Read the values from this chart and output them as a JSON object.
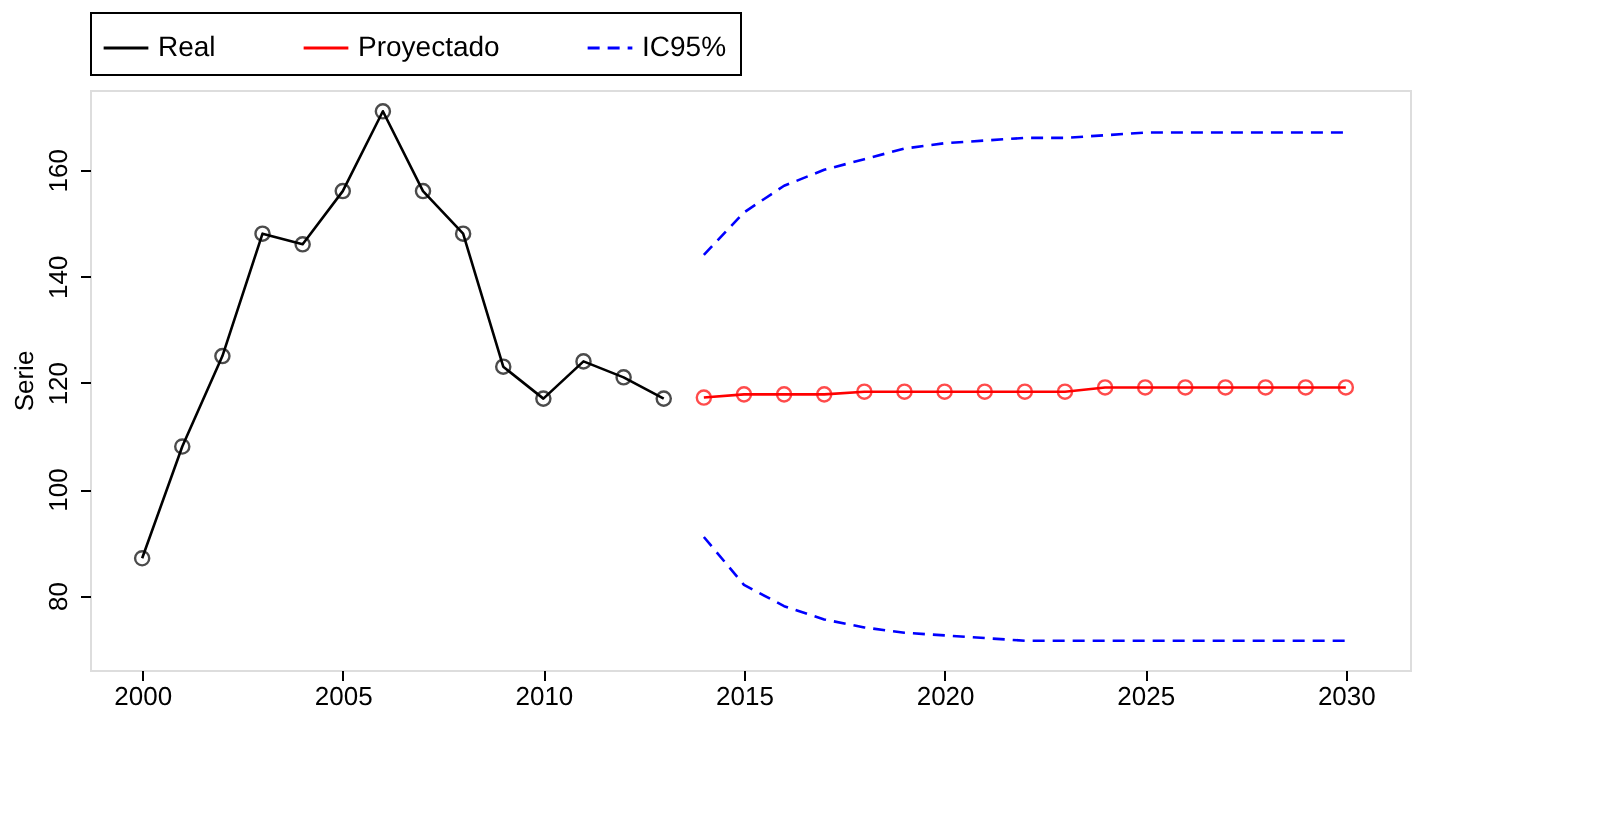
{
  "chart_data": {
    "type": "line",
    "ylabel": "Serie",
    "xlim": [
      1998.7,
      2031.6
    ],
    "ylim": [
      66,
      175
    ],
    "xticks": [
      2000,
      2005,
      2010,
      2015,
      2020,
      2025,
      2030
    ],
    "yticks": [
      80,
      100,
      120,
      140,
      160
    ],
    "grid": false,
    "legend": "top",
    "series": [
      {
        "name": "Real",
        "color": "#000000",
        "marker": "circle",
        "line_style": "solid",
        "x": [
          2000,
          2001,
          2002,
          2003,
          2004,
          2005,
          2006,
          2007,
          2008,
          2009,
          2010,
          2011,
          2012,
          2013
        ],
        "values": [
          87,
          108,
          125,
          148,
          146,
          156,
          171,
          156,
          148,
          123,
          117,
          124,
          121,
          117
        ]
      },
      {
        "name": "Proyectado",
        "color": "#ff0000",
        "marker": "circle",
        "line_style": "solid",
        "x": [
          2014,
          2015,
          2016,
          2017,
          2018,
          2019,
          2020,
          2021,
          2022,
          2023,
          2024,
          2025,
          2026,
          2027,
          2028,
          2029,
          2030
        ],
        "values": [
          117.2,
          117.8,
          117.8,
          117.8,
          118.3,
          118.3,
          118.3,
          118.3,
          118.3,
          118.3,
          119.1,
          119.1,
          119.1,
          119.1,
          119.1,
          119.1,
          119.1
        ]
      },
      {
        "name": "IC95%",
        "color": "#0000ff",
        "marker": "none",
        "line_style": "dashed",
        "x": [
          2014,
          2015,
          2016,
          2017,
          2018,
          2019,
          2020,
          2021,
          2022,
          2023,
          2024,
          2025,
          2026,
          2027,
          2028,
          2029,
          2030
        ],
        "values": [
          144,
          152,
          157,
          160,
          162,
          164,
          165,
          165.5,
          166,
          166,
          166.5,
          167,
          167,
          167,
          167,
          167,
          167
        ]
      },
      {
        "color": "#0000ff",
        "marker": "none",
        "line_style": "dashed",
        "x": [
          2014,
          2015,
          2016,
          2017,
          2018,
          2019,
          2020,
          2021,
          2022,
          2023,
          2024,
          2025,
          2026,
          2027,
          2028,
          2029,
          2030
        ],
        "values": [
          91,
          82,
          78,
          75.5,
          74,
          73,
          72.5,
          72,
          71.5,
          71.5,
          71.5,
          71.5,
          71.5,
          71.5,
          71.5,
          71.5,
          71.5
        ]
      }
    ]
  }
}
